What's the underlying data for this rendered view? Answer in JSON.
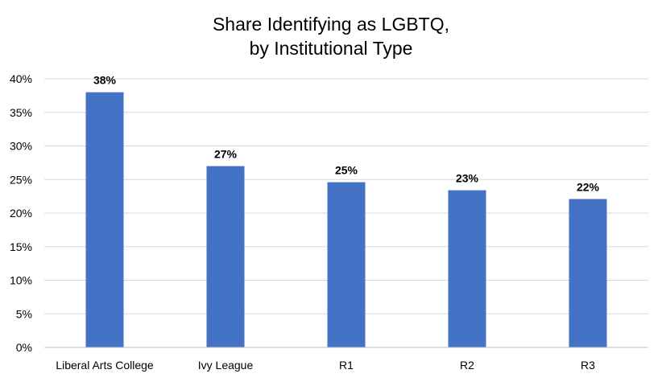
{
  "chart_data": {
    "type": "bar",
    "title_lines": [
      "Share Identifying as LGBTQ,",
      "by Institutional Type"
    ],
    "categories": [
      "Liberal Arts College",
      "Ivy League",
      "R1",
      "R2",
      "R3"
    ],
    "values": [
      38,
      27,
      24.6,
      23.4,
      22.1
    ],
    "data_labels": [
      "38%",
      "27%",
      "25%",
      "23%",
      "22%"
    ],
    "ylim": [
      0,
      40
    ],
    "yticks": [
      0,
      5,
      10,
      15,
      20,
      25,
      30,
      35,
      40
    ],
    "ytick_labels": [
      "0%",
      "5%",
      "10%",
      "15%",
      "20%",
      "25%",
      "30%",
      "35%",
      "40%"
    ],
    "xlabel": "",
    "ylabel": "",
    "grid": true,
    "legend": "none",
    "colors": {
      "bar": "#4472C4",
      "grid": "#D9D9D9",
      "axis": "#BFBFBF"
    }
  }
}
